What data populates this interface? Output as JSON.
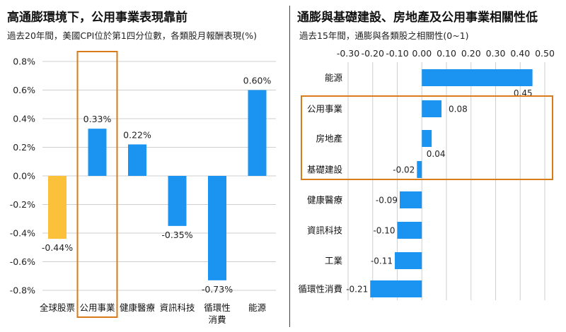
{
  "left": {
    "title": "高通膨環境下，公用事業表現靠前",
    "subtitle": "過去20年間，美國CPI位於第1四分位數，各類股月報酬表現(%)"
  },
  "right": {
    "title": "通膨與基礎建設、房地產及公用事業相關性低",
    "subtitle": "過去15年間，通膨與各類股之相關性(0~1)"
  },
  "colors": {
    "bar": "#1a94f0",
    "highlight_bar": "#fbc13a",
    "box": "#d97b18",
    "grid": "#cfcfcf"
  },
  "chart_data": [
    {
      "type": "bar",
      "orientation": "vertical",
      "categories": [
        "全球股票",
        "公用事業",
        "健康醫療",
        "資訊科技",
        "循環性\n消費",
        "能源"
      ],
      "values": [
        -0.44,
        0.33,
        0.22,
        -0.35,
        -0.73,
        0.6
      ],
      "value_labels": [
        "-0.44%",
        "0.33%",
        "0.22%",
        "-0.35%",
        "-0.73%",
        "0.60%"
      ],
      "highlighted_bar": "全球股票",
      "boxed_category": "公用事業",
      "ylim": [
        -0.8,
        0.8
      ],
      "yticks": [
        -0.8,
        -0.6,
        -0.4,
        -0.2,
        0.0,
        0.2,
        0.4,
        0.6,
        0.8
      ],
      "ytick_labels": [
        "-0.8%",
        "-0.6%",
        "-0.4%",
        "-0.2%",
        "0.0%",
        "0.2%",
        "0.4%",
        "0.6%",
        "0.8%"
      ],
      "grid": true
    },
    {
      "type": "bar",
      "orientation": "horizontal",
      "categories": [
        "能源",
        "公用事業",
        "房地產",
        "基礎建設",
        "健康醫療",
        "資訊科技",
        "工業",
        "循環性消費"
      ],
      "values": [
        0.45,
        0.08,
        0.04,
        -0.02,
        -0.09,
        -0.1,
        -0.11,
        -0.21
      ],
      "value_labels": [
        "0.45",
        "0.08",
        "0.04",
        "-0.02",
        "-0.09",
        "-0.10",
        "-0.11",
        "-0.21"
      ],
      "boxed_categories": [
        "公用事業",
        "房地產",
        "基礎建設"
      ],
      "xlim": [
        -0.3,
        0.5
      ],
      "xticks": [
        -0.3,
        -0.2,
        -0.1,
        0.0,
        0.1,
        0.2,
        0.3,
        0.4,
        0.5
      ],
      "xtick_labels": [
        "-0.30",
        "-0.20",
        "-0.10",
        "0.00",
        "0.10",
        "0.20",
        "0.30",
        "0.40",
        "0.50"
      ],
      "xaxis_position": "top",
      "grid": true
    }
  ]
}
